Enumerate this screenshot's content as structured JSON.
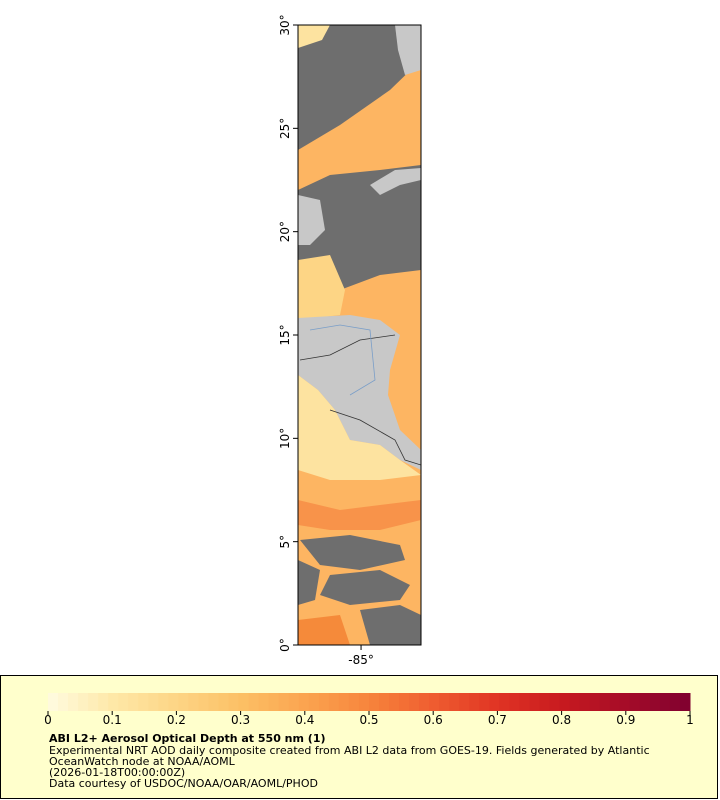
{
  "map": {
    "ylim": [
      0,
      30
    ],
    "xlim": [
      -88.05,
      -82.1
    ],
    "yticks": [
      {
        "value": 0,
        "label": "0°"
      },
      {
        "value": 5,
        "label": "5°"
      },
      {
        "value": 10,
        "label": "10°"
      },
      {
        "value": 15,
        "label": "15°"
      },
      {
        "value": 20,
        "label": "20°"
      },
      {
        "value": 25,
        "label": "25°"
      },
      {
        "value": 30,
        "label": "30°"
      }
    ],
    "xticks": [
      {
        "value": -85,
        "label": "-85°"
      }
    ]
  },
  "legend": {
    "title": "ABI L2+ Aerosol Optical Depth at 550 nm (1)",
    "description": "Experimental NRT AOD daily composite created from ABI L2 data from GOES-19. Fields generated by Atlantic OceanWatch node at NOAA/AOML",
    "time": "(2026-01-18T00:00:00Z)",
    "credit": "Data courtesy of USDOC/NOAA/OAR/AOML/PHOD",
    "colorbar": {
      "range": [
        0,
        1
      ],
      "ticks": [
        0,
        0.1,
        0.2,
        0.3,
        0.4,
        0.5,
        0.6,
        0.7,
        0.8,
        0.9,
        1
      ],
      "colors": [
        "#fffbe0",
        "#fee8a8",
        "#fdd585",
        "#fcc065",
        "#fba450",
        "#f7843c",
        "#ef5d30",
        "#e03424",
        "#c81a1f",
        "#a50c28",
        "#7f0030"
      ]
    }
  }
}
